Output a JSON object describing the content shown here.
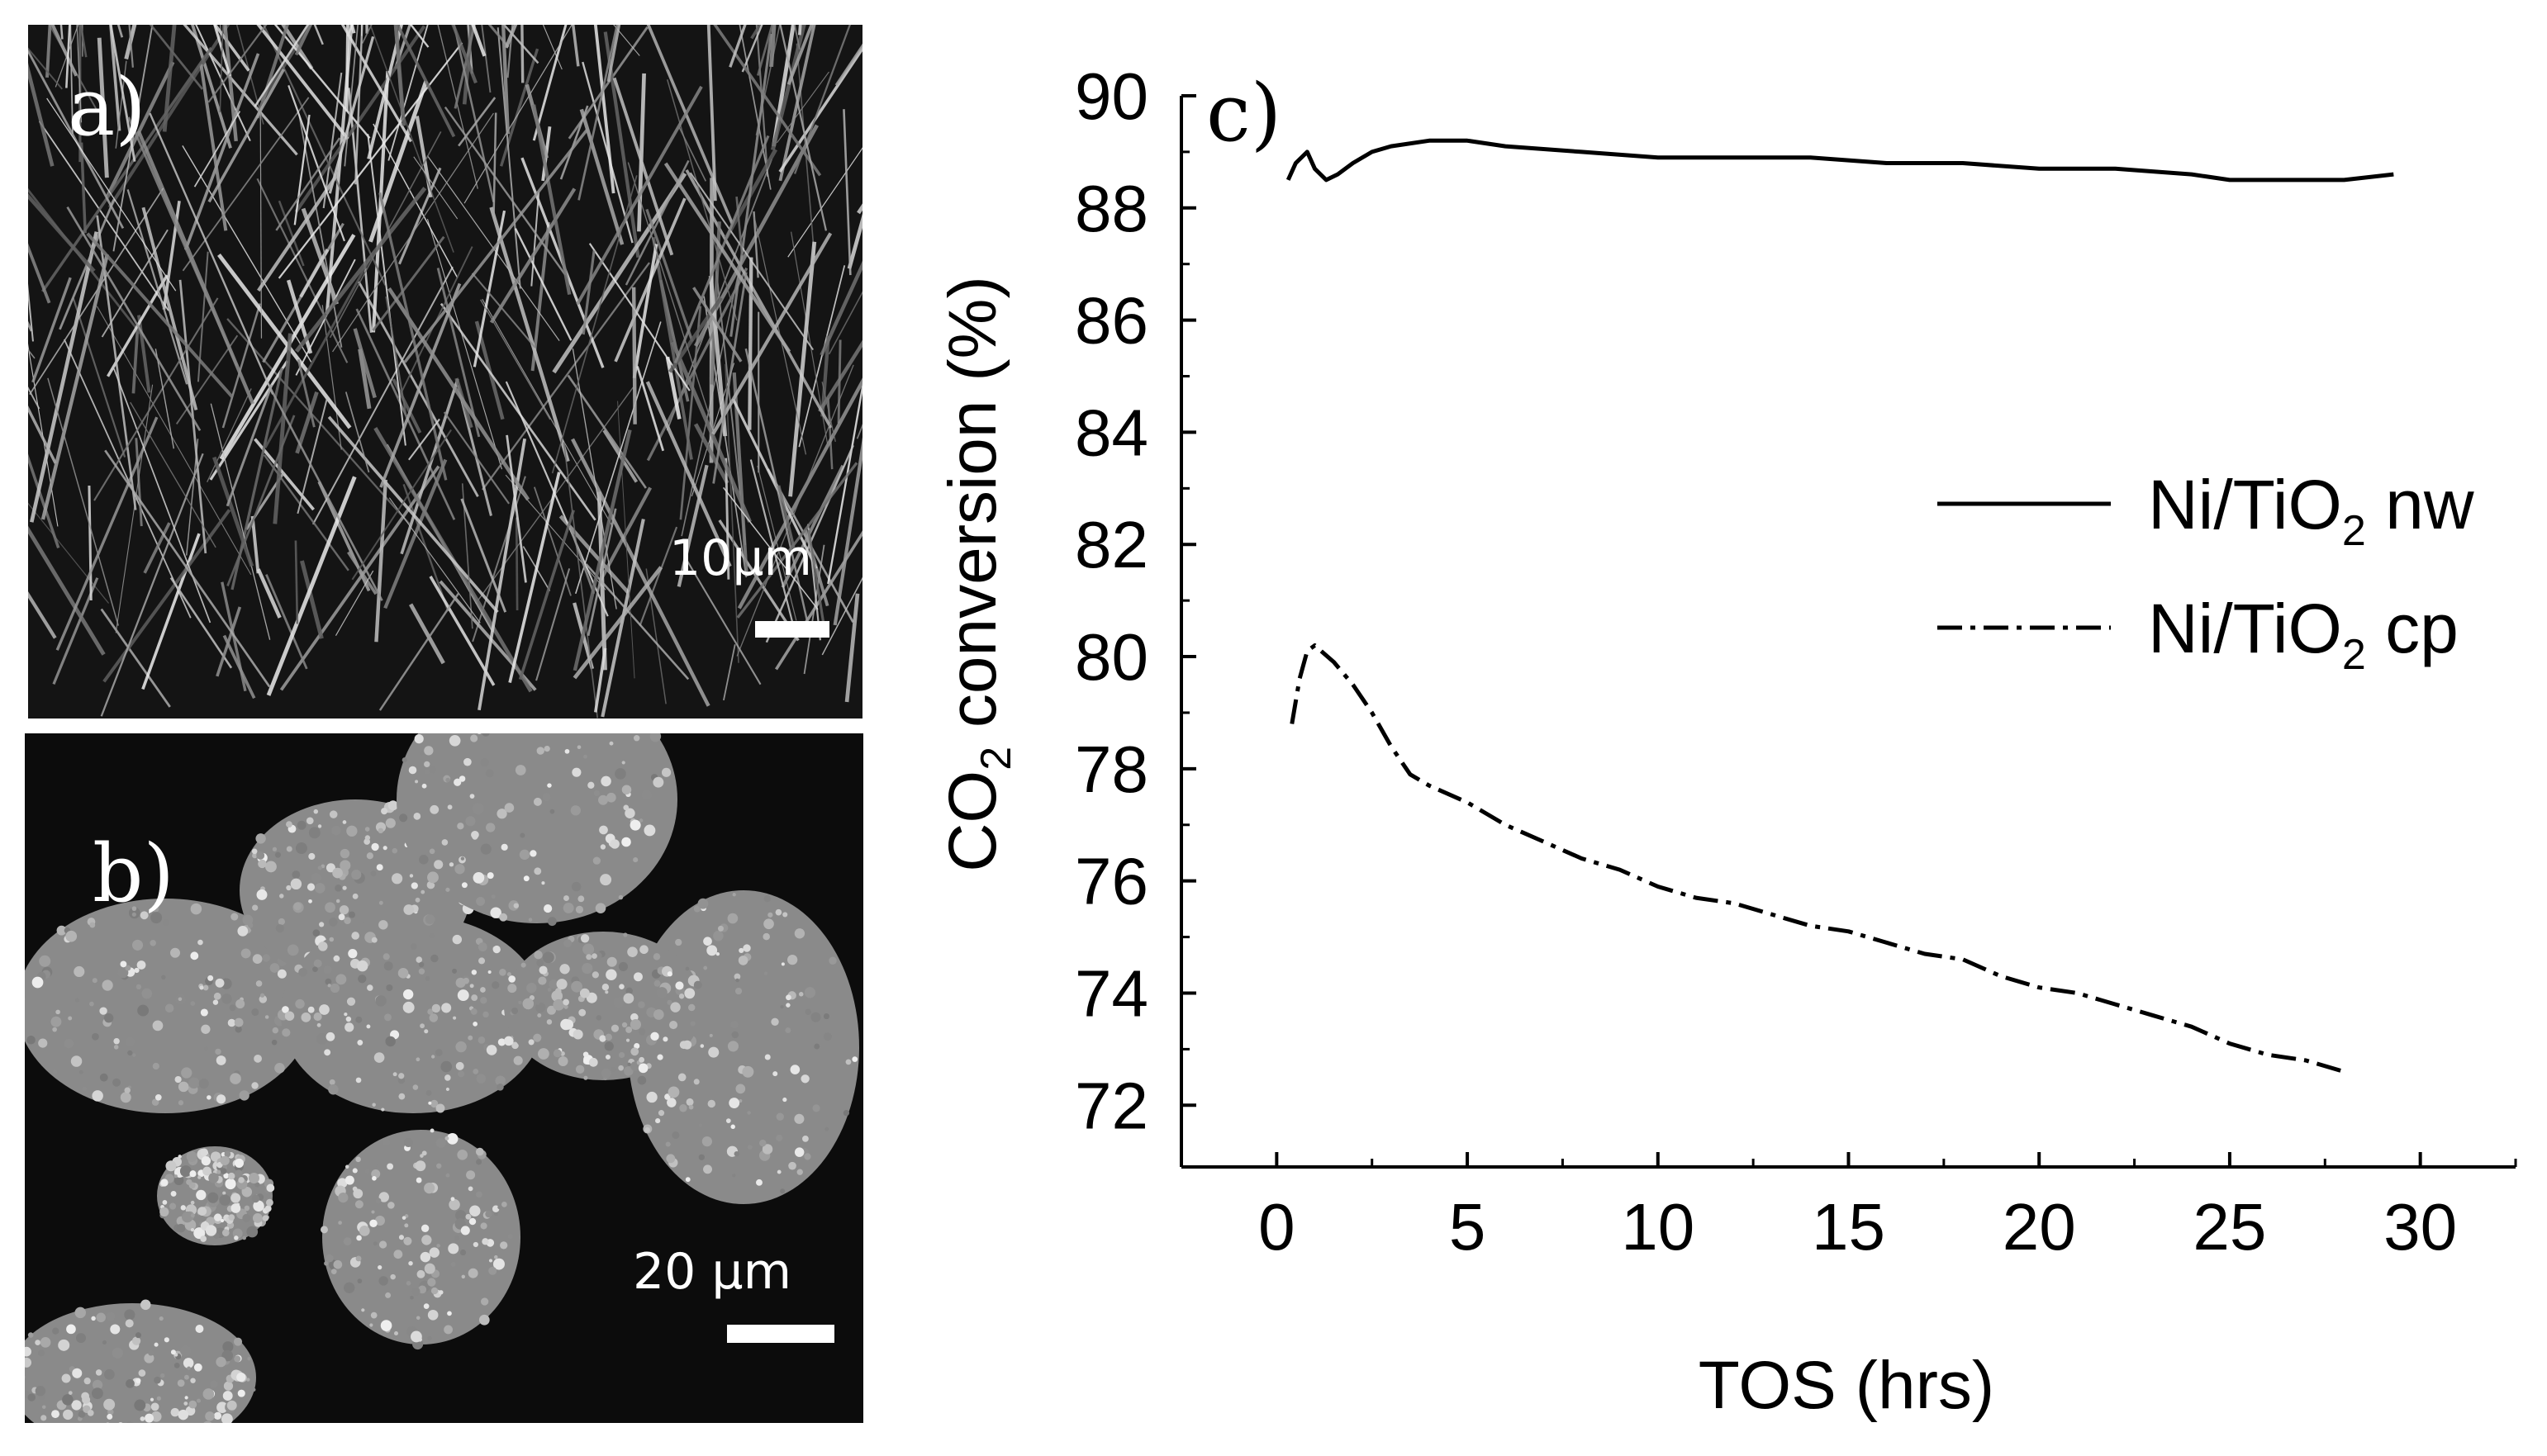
{
  "panels": {
    "a": {
      "label": "a)",
      "scale_bar_text": "10µm"
    },
    "b": {
      "label": "b)",
      "scale_bar_text": "20 µm"
    }
  },
  "chart_data": {
    "type": "line",
    "panel_label": "c)",
    "xlabel": "TOS (hrs)",
    "ylabel": "CO2 conversion (%)",
    "xlim": [
      -2.5,
      32.5
    ],
    "ylim": [
      70.9,
      90.0
    ],
    "xticks": [
      0,
      5,
      10,
      15,
      20,
      25,
      30
    ],
    "yticks": [
      72,
      74,
      76,
      78,
      80,
      82,
      84,
      86,
      88,
      90
    ],
    "legend_position": "right",
    "series": [
      {
        "name": "Ni/TiO2 nw",
        "style": "solid",
        "x": [
          0.3,
          0.5,
          0.8,
          1.0,
          1.3,
          1.6,
          2.0,
          2.5,
          3.0,
          4.0,
          5.0,
          6.0,
          8.0,
          10.0,
          12.0,
          14.0,
          16.0,
          18.0,
          20.0,
          22.0,
          24.0,
          25.0,
          26.0,
          27.0,
          28.0,
          29.3
        ],
        "y": [
          88.5,
          88.8,
          89.0,
          88.7,
          88.5,
          88.6,
          88.8,
          89.0,
          89.1,
          89.2,
          89.2,
          89.1,
          89.0,
          88.9,
          88.9,
          88.9,
          88.8,
          88.8,
          88.7,
          88.7,
          88.6,
          88.5,
          88.5,
          88.5,
          88.5,
          88.6
        ]
      },
      {
        "name": "Ni/TiO2 cp",
        "style": "dashdot",
        "x": [
          0.4,
          0.6,
          0.8,
          1.0,
          1.5,
          2.0,
          2.5,
          3.0,
          3.5,
          4.0,
          5.0,
          6.0,
          7.0,
          8.0,
          9.0,
          10.0,
          11.0,
          12.0,
          13.0,
          14.0,
          15.0,
          16.0,
          17.0,
          18.0,
          19.0,
          20.0,
          21.0,
          22.0,
          23.0,
          24.0,
          25.0,
          26.0,
          27.0,
          28.0
        ],
        "y": [
          78.8,
          79.6,
          80.1,
          80.2,
          79.9,
          79.5,
          79.0,
          78.4,
          77.9,
          77.7,
          77.4,
          77.0,
          76.7,
          76.4,
          76.2,
          75.9,
          75.7,
          75.6,
          75.4,
          75.2,
          75.1,
          74.9,
          74.7,
          74.6,
          74.3,
          74.1,
          74.0,
          73.8,
          73.6,
          73.4,
          73.1,
          72.9,
          72.8,
          72.6
        ]
      }
    ]
  },
  "colors": {
    "line": "#000000",
    "panel_bg": "#141414",
    "text_on_dark": "#ffffff"
  }
}
